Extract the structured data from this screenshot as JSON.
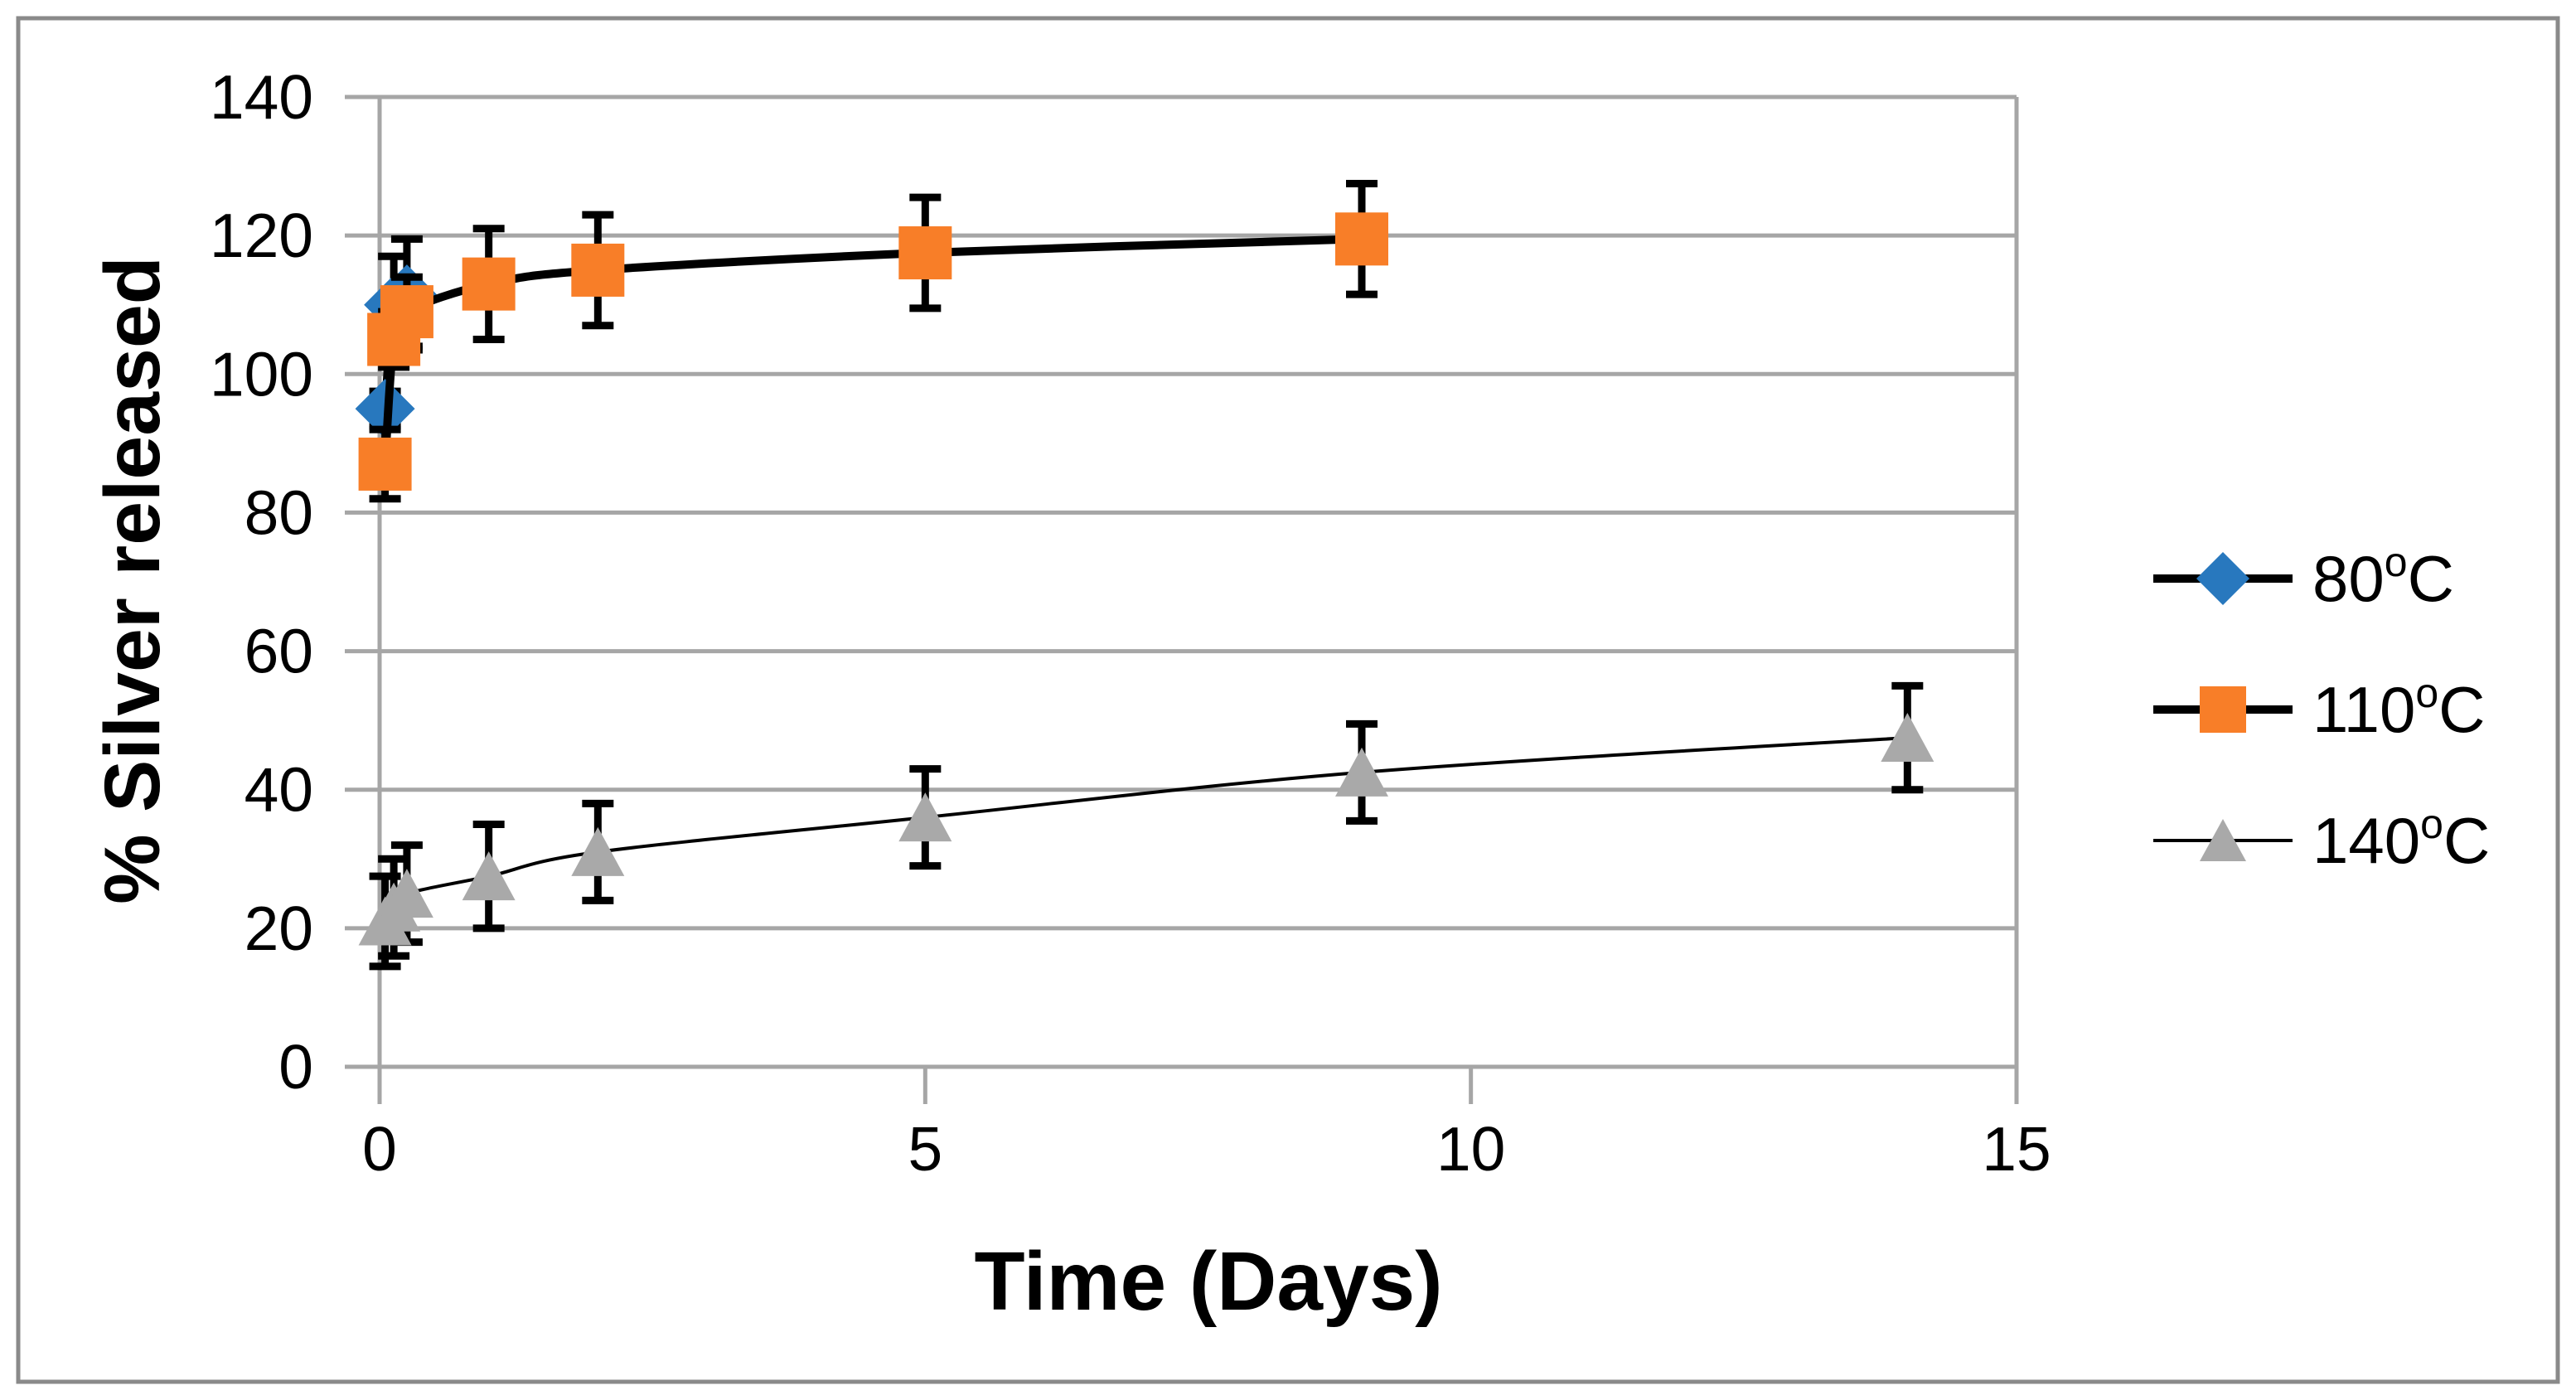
{
  "figure": {
    "background": "#FFFFFF",
    "border_color": "#8A8A8A"
  },
  "chart_data": {
    "type": "line",
    "title": "",
    "xlabel": "Time (Days)",
    "ylabel": "% Silver released",
    "xlim": [
      0,
      15
    ],
    "ylim": [
      0,
      140
    ],
    "x_ticks": [
      0,
      5,
      10,
      15
    ],
    "y_ticks": [
      0,
      20,
      40,
      60,
      80,
      100,
      120,
      140
    ],
    "grid": "horizontal-gridlines-on",
    "gridline_color": "#A6A6A6",
    "axis_line_color": "#A6A6A6",
    "error_bar_color": "#000000",
    "legend_position": "right-middle",
    "series": [
      {
        "name": "80oC",
        "name_parts": {
          "base": "80",
          "sup": "o",
          "tail": "C"
        },
        "marker": "diamond",
        "color": "#2878BE",
        "line_color": "#000000",
        "line_style": "thick-smooth",
        "x": [
          0.05,
          0.13,
          0.25
        ],
        "y": [
          95,
          110,
          111.5
        ],
        "err": [
          2.5,
          7,
          8
        ]
      },
      {
        "name": "110oC",
        "name_parts": {
          "base": "110",
          "sup": "o",
          "tail": "C"
        },
        "marker": "square",
        "color": "#F87E28",
        "line_color": "#000000",
        "line_style": "thick-smooth",
        "x": [
          0.05,
          0.13,
          0.25,
          1,
          2,
          5,
          9
        ],
        "y": [
          87,
          105,
          109,
          113,
          115,
          117.5,
          119.5
        ],
        "err": [
          5,
          4,
          5,
          8,
          8,
          8,
          8
        ]
      },
      {
        "name": "140oC",
        "name_parts": {
          "base": "140",
          "sup": "o",
          "tail": "C"
        },
        "marker": "triangle",
        "color": "#A9A9A9",
        "line_color": "#000000",
        "line_style": "thin-smooth",
        "x": [
          0.05,
          0.13,
          0.25,
          1,
          2,
          5,
          9,
          14
        ],
        "y": [
          21,
          23,
          25,
          27.5,
          31,
          36,
          42.5,
          47.5
        ],
        "err": [
          6.5,
          7,
          7,
          7.5,
          7,
          7,
          7,
          7.5
        ]
      }
    ]
  }
}
